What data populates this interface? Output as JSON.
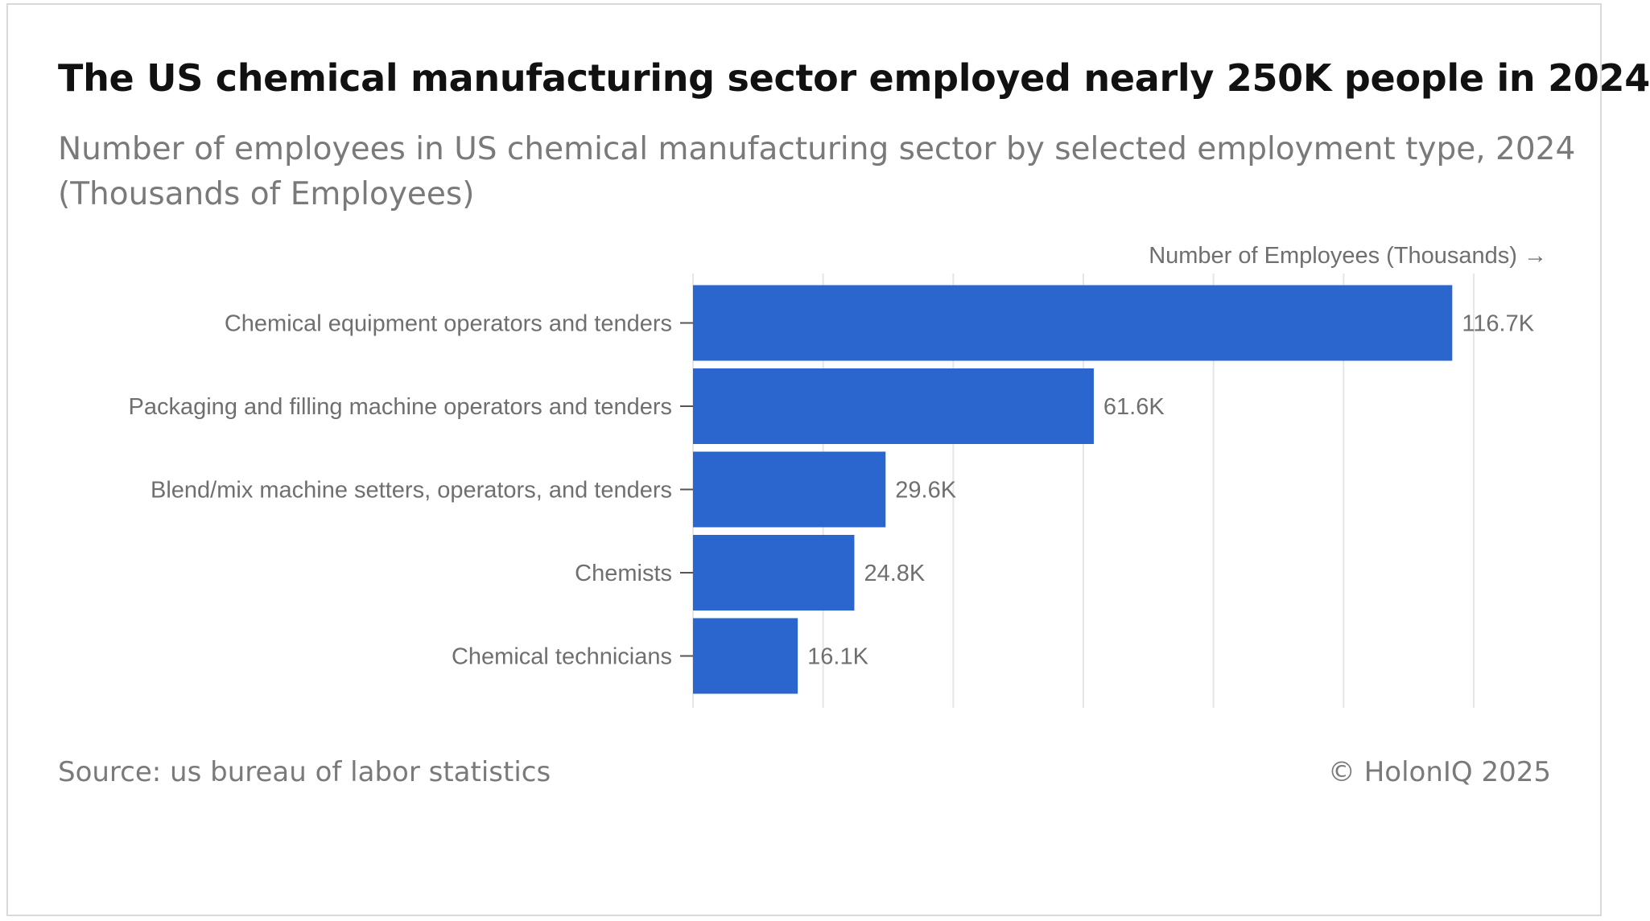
{
  "header": {
    "title": "The US chemical manufacturing sector employed nearly 250K people in 2024",
    "subtitle_line1": "Number of employees in US chemical manufacturing sector by selected employment type, 2024",
    "subtitle_line2": "(Thousands of Employees)"
  },
  "footer": {
    "source": "Source: us bureau of labor statistics",
    "credit": "© HolonIQ 2025"
  },
  "colors": {
    "bar": "#2b66cf",
    "grid": "#e6e6e6",
    "tick": "#555555"
  },
  "chart_data": {
    "type": "bar",
    "orientation": "horizontal",
    "xlabel": "Number of Employees (Thousands) →",
    "ylabel": "",
    "xlim": [
      0,
      120
    ],
    "grid": true,
    "grid_step": 20,
    "categories": [
      "Chemical equipment operators and tenders",
      "Packaging and filling machine operators and tenders",
      "Blend/mix machine setters, operators, and tenders",
      "Chemists",
      "Chemical technicians"
    ],
    "values": [
      116.7,
      61.6,
      29.6,
      24.8,
      16.1
    ],
    "value_labels": [
      "116.7K",
      "61.6K",
      "29.6K",
      "24.8K",
      "16.1K"
    ]
  }
}
